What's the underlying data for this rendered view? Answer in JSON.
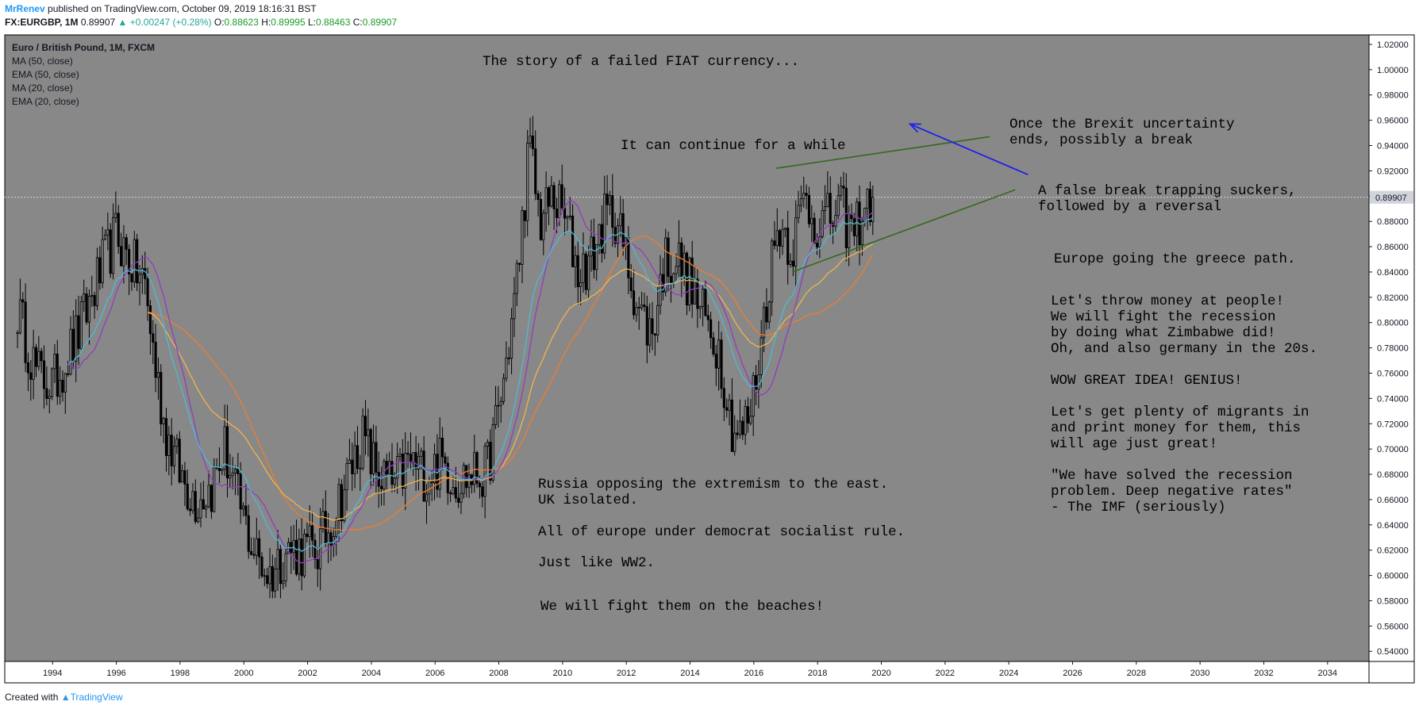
{
  "header": {
    "author": "MrRenev",
    "published": "published on TradingView.com, October 09, 2019 18:16:31 BST",
    "symbol": "FX:EURGBP, 1M",
    "last": "0.89907",
    "change": "▲ +0.00247 (+0.28%)",
    "o_label": "O:",
    "o_value": "0.88623",
    "h_label": "H:",
    "h_value": "0.89995",
    "l_label": "L:",
    "l_value": "0.88463",
    "c_label": "C:",
    "c_value": "0.89907"
  },
  "footer": {
    "created_with": "Created with",
    "brand": "TradingView"
  },
  "chart_data": {
    "type": "candlestick",
    "title": "Euro / British Pound, 1M, FXCM",
    "indicators": [
      "MA (50, close)",
      "EMA (50, close)",
      "MA (20, close)",
      "EMA (20, close)"
    ],
    "xlim": [
      1992.5,
      2035.3
    ],
    "ylim": [
      0.532,
      1.0275
    ],
    "x_ticks": [
      "1994",
      "1996",
      "1998",
      "2000",
      "2002",
      "2004",
      "2006",
      "2008",
      "2010",
      "2012",
      "2014",
      "2016",
      "2018",
      "2020",
      "2022",
      "2024",
      "2026",
      "2028",
      "2030",
      "2032",
      "2034"
    ],
    "y_ticks": [
      "1.02000",
      "1.00000",
      "0.98000",
      "0.96000",
      "0.94000",
      "0.92000",
      "0.90000",
      "0.88000",
      "0.86000",
      "0.84000",
      "0.82000",
      "0.80000",
      "0.78000",
      "0.76000",
      "0.74000",
      "0.72000",
      "0.70000",
      "0.68000",
      "0.66000",
      "0.64000",
      "0.62000",
      "0.60000",
      "0.58000",
      "0.56000",
      "0.54000"
    ],
    "last_price": "0.89907",
    "price_anchors": [
      [
        1992.9,
        0.81
      ],
      [
        1993.5,
        0.76
      ],
      [
        1994.0,
        0.75
      ],
      [
        1994.8,
        0.79
      ],
      [
        1995.5,
        0.84
      ],
      [
        1996.0,
        0.87
      ],
      [
        1996.4,
        0.85
      ],
      [
        1996.9,
        0.83
      ],
      [
        1997.2,
        0.77
      ],
      [
        1997.5,
        0.72
      ],
      [
        1998.0,
        0.68
      ],
      [
        1998.5,
        0.66
      ],
      [
        1999.0,
        0.67
      ],
      [
        1999.4,
        0.7
      ],
      [
        1999.8,
        0.66
      ],
      [
        2000.3,
        0.62
      ],
      [
        2000.8,
        0.6
      ],
      [
        2001.3,
        0.62
      ],
      [
        2001.8,
        0.62
      ],
      [
        2002.3,
        0.62
      ],
      [
        2002.7,
        0.64
      ],
      [
        2003.3,
        0.68
      ],
      [
        2003.7,
        0.71
      ],
      [
        2004.2,
        0.68
      ],
      [
        2004.7,
        0.67
      ],
      [
        2005.2,
        0.69
      ],
      [
        2005.7,
        0.68
      ],
      [
        2006.2,
        0.69
      ],
      [
        2006.7,
        0.675
      ],
      [
        2007.2,
        0.68
      ],
      [
        2007.6,
        0.68
      ],
      [
        2008.0,
        0.73
      ],
      [
        2008.3,
        0.78
      ],
      [
        2008.6,
        0.84
      ],
      [
        2008.95,
        0.94
      ],
      [
        2009.3,
        0.88
      ],
      [
        2009.7,
        0.9
      ],
      [
        2010.1,
        0.88
      ],
      [
        2010.5,
        0.84
      ],
      [
        2010.9,
        0.85
      ],
      [
        2011.3,
        0.88
      ],
      [
        2011.6,
        0.89
      ],
      [
        2011.9,
        0.86
      ],
      [
        2012.4,
        0.81
      ],
      [
        2012.8,
        0.79
      ],
      [
        2013.2,
        0.85
      ],
      [
        2013.6,
        0.85
      ],
      [
        2014.0,
        0.83
      ],
      [
        2014.5,
        0.8
      ],
      [
        2014.9,
        0.78
      ],
      [
        2015.3,
        0.72
      ],
      [
        2015.6,
        0.71
      ],
      [
        2015.9,
        0.73
      ],
      [
        2016.2,
        0.78
      ],
      [
        2016.5,
        0.84
      ],
      [
        2016.8,
        0.88
      ],
      [
        2017.2,
        0.86
      ],
      [
        2017.6,
        0.9
      ],
      [
        2017.9,
        0.88
      ],
      [
        2018.3,
        0.88
      ],
      [
        2018.7,
        0.89
      ],
      [
        2019.1,
        0.87
      ],
      [
        2019.45,
        0.89
      ],
      [
        2019.75,
        0.899
      ]
    ],
    "annotations": [
      [
        "The story of a failed FIAT currency..."
      ],
      [
        "It can continue for a while"
      ],
      [
        "Once the Brexit uncertainty",
        "ends, possibly a break"
      ],
      [
        "A false break trapping suckers,",
        "followed by a reversal"
      ],
      [
        "Europe going the greece path."
      ],
      [
        "Let's throw money at people!",
        "We will fight the recession",
        "by doing what Zimbabwe did!",
        "Oh, and also germany in the 20s."
      ],
      [
        "WOW GREAT IDEA! GENIUS!"
      ],
      [
        "Let's get plenty of migrants in",
        "and print money for them, this",
        "will age just great!"
      ],
      [
        "\"We have solved the recession",
        "problem. Deep negative rates\"",
        "- The IMF (seriously)"
      ],
      [
        "Russia opposing the extremism to the east.",
        "UK isolated."
      ],
      [
        "All of europe under democrat socialist rule."
      ],
      [
        "Just like WW2."
      ],
      [
        "We will fight them on the beaches!"
      ]
    ],
    "trendlines": [
      {
        "name": "upper-trendline",
        "color": "#33691e",
        "from": [
          2016.7,
          0.922
        ],
        "to": [
          2023.4,
          0.947
        ]
      },
      {
        "name": "lower-trendline",
        "color": "#33691e",
        "from": [
          2017.2,
          0.84
        ],
        "to": [
          2024.2,
          0.905
        ]
      }
    ],
    "arrow": {
      "name": "blue-arrow",
      "color": "#1e22e8",
      "from": [
        2024.6,
        0.917
      ],
      "to": [
        2020.9,
        0.957
      ]
    },
    "colors": {
      "background": "#888888",
      "candle": "#000000",
      "ma50": "#8e3fbf",
      "ema50": "#4fb9d7",
      "ma20": "#f2b34d",
      "ema20": "#ef7d2d",
      "axis_bg": "#ffffff",
      "last_tag": "#d1d4dc"
    }
  }
}
